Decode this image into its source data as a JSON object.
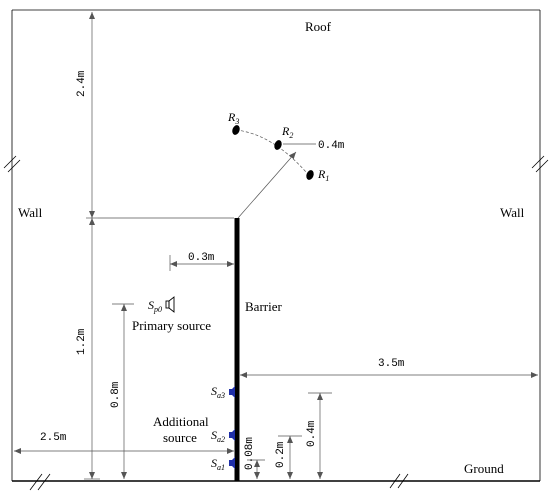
{
  "labels": {
    "roof": "Roof",
    "wall_left": "Wall",
    "wall_right": "Wall",
    "ground": "Ground",
    "barrier": "Barrier",
    "primary_source": "Primary source",
    "additional_source_line1": "Additional",
    "additional_source_line2": "source"
  },
  "receivers": {
    "r1": {
      "main": "R",
      "sub": "1"
    },
    "r2": {
      "main": "R",
      "sub": "2"
    },
    "r3": {
      "main": "R",
      "sub": "3"
    }
  },
  "sources": {
    "sp0": {
      "main": "S",
      "sub": "p0"
    },
    "sa1": {
      "main": "S",
      "sub": "a1"
    },
    "sa2": {
      "main": "S",
      "sub": "a2"
    },
    "sa3": {
      "main": "S",
      "sub": "a3"
    }
  },
  "dimensions": {
    "height_above_barrier": "2.4m",
    "barrier_height": "1.2m",
    "primary_source_height": "0.8m",
    "left_distance": "2.5m",
    "right_distance": "3.5m",
    "source_offset": "0.3m",
    "receiver_radius": "0.4m",
    "sa2_height": "0.08m",
    "sa3_height_a": "0.2m",
    "sa3_height_b": "0.4m"
  },
  "colors": {
    "line": "#000000",
    "dimension": "#555555",
    "speaker_blue": "#1f2fa8"
  },
  "icons": {
    "speaker": "speaker-icon",
    "receiver": "receiver-ellipse-icon"
  }
}
